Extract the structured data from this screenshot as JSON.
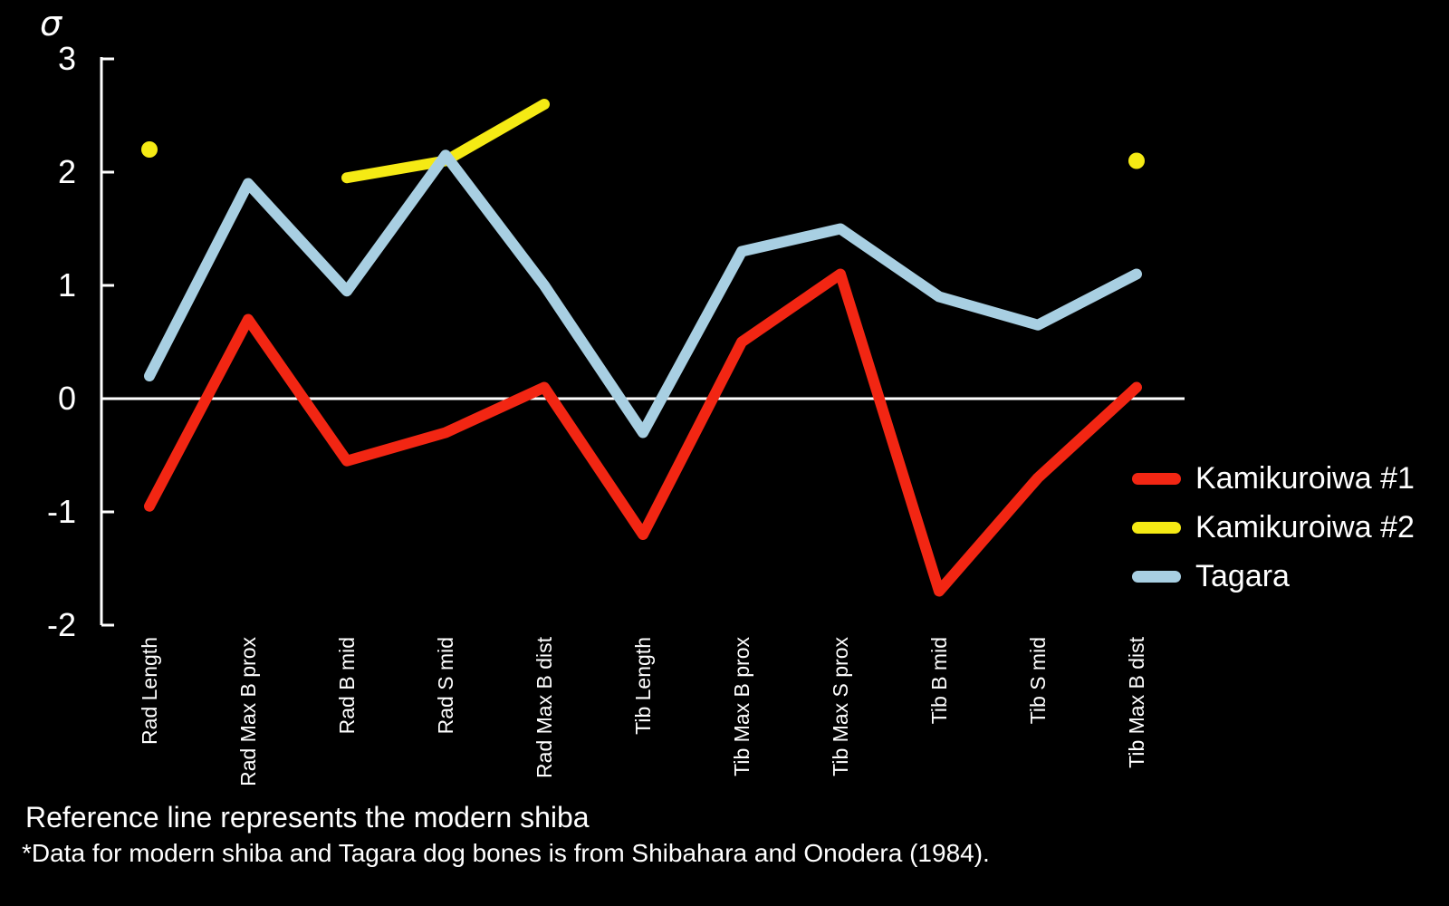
{
  "chart_data": {
    "type": "line",
    "title": "",
    "ylabel": "σ",
    "xlabel": "",
    "ylim": [
      -2,
      3
    ],
    "yticks": [
      3,
      2,
      1,
      0,
      -1,
      -2
    ],
    "reference_line": 0,
    "grid": false,
    "legend_position": "right-middle",
    "background_color": "#000000",
    "axis_color": "#ffffff",
    "categories": [
      "Rad Length",
      "Rad Max B prox",
      "Rad B mid",
      "Rad S mid",
      "Rad Max B dist",
      "Tib Length",
      "Tib Max B prox",
      "Tib Max S prox",
      "Tib B mid",
      "Tib S mid",
      "Tib Max B dist"
    ],
    "series": [
      {
        "name": "Kamikuroiwa #1",
        "color": "#f22613",
        "values": [
          -0.95,
          0.7,
          -0.55,
          -0.3,
          0.1,
          -1.2,
          0.5,
          1.1,
          -1.7,
          -0.7,
          0.1
        ]
      },
      {
        "name": "Kamikuroiwa #2",
        "color": "#f5ea14",
        "values": [
          2.2,
          null,
          1.95,
          2.1,
          2.6,
          null,
          null,
          null,
          null,
          null,
          2.1
        ]
      },
      {
        "name": "Tagara",
        "color": "#a8cfe2",
        "values": [
          0.2,
          1.9,
          0.95,
          2.15,
          1.0,
          -0.3,
          1.3,
          1.5,
          0.9,
          0.65,
          1.1
        ]
      }
    ]
  },
  "notes": {
    "line1": "Reference line represents the modern shiba",
    "line2": "*Data for modern shiba and Tagara dog bones is from Shibahara and Onodera (1984)."
  }
}
